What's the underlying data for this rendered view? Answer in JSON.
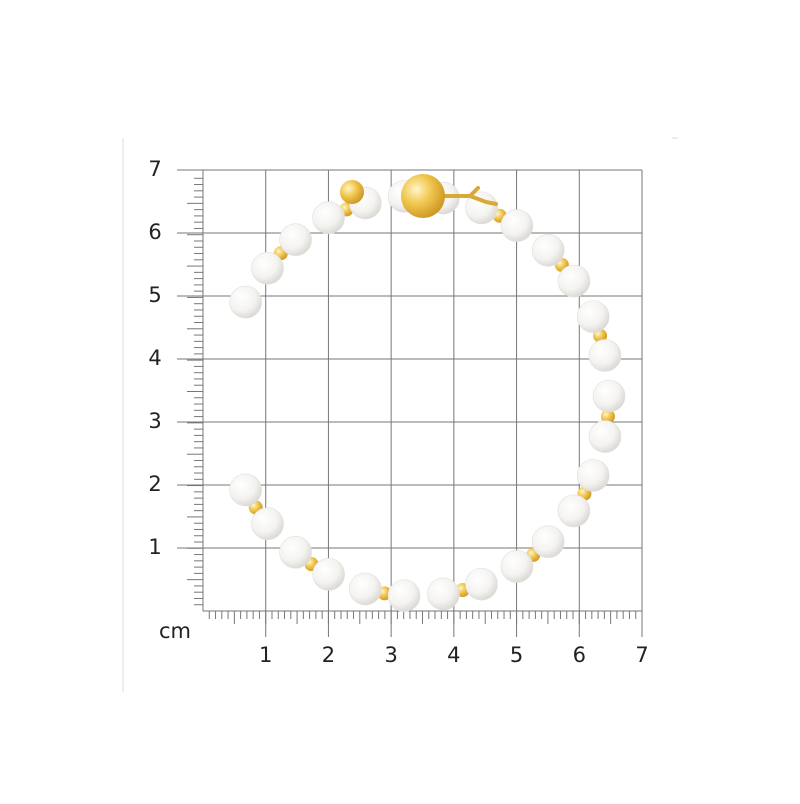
{
  "measurement_grid": {
    "unit": "cm",
    "xlim": [
      0,
      7
    ],
    "ylim": [
      0,
      7
    ],
    "xticks": [
      1,
      2,
      3,
      4,
      5,
      6,
      7
    ],
    "yticks": [
      1,
      2,
      3,
      4,
      5,
      6,
      7
    ]
  }
}
